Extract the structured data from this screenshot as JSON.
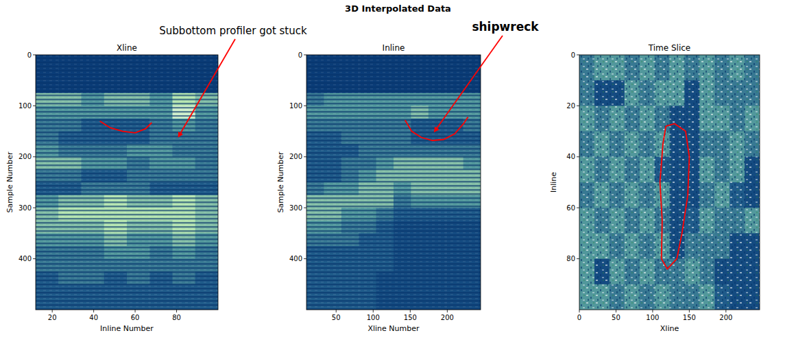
{
  "title": "3D Interpolated Data",
  "annotations": [
    {
      "text": "Subbottom profiler got stuck",
      "panel": 0,
      "x": 81,
      "y": 160,
      "color": "red"
    },
    {
      "text": "shipwreck",
      "panel": 1,
      "x": 183,
      "y": 150,
      "color": "red"
    }
  ],
  "chart_data": [
    {
      "type": "heatmap",
      "title": "Xline",
      "x_label": "Inline Number",
      "y_label": "Sample Number",
      "xlim": [
        12,
        100
      ],
      "ylim": [
        500,
        0
      ],
      "xticks": [
        20,
        40,
        60,
        80
      ],
      "yticks": [
        0,
        100,
        200,
        300,
        400
      ],
      "zlim": [
        0,
        9
      ],
      "outline": {
        "x": [
          43,
          48,
          54,
          60,
          65,
          68
        ],
        "y": [
          130,
          143,
          150,
          153,
          145,
          133
        ],
        "color": "red"
      },
      "cells": [
        [
          1,
          1,
          1,
          1,
          1,
          1,
          1,
          1
        ],
        [
          1,
          1,
          1,
          1,
          1,
          1,
          1,
          1
        ],
        [
          1,
          1,
          1,
          1,
          1,
          1,
          1,
          1
        ],
        [
          6,
          6,
          5,
          6,
          6,
          5,
          7,
          6
        ],
        [
          5,
          5,
          5,
          5,
          5,
          5,
          8,
          5
        ],
        [
          4,
          4,
          3,
          3,
          3,
          4,
          5,
          4
        ],
        [
          4,
          3,
          3,
          3,
          3,
          4,
          4,
          4
        ],
        [
          5,
          4,
          4,
          4,
          5,
          5,
          4,
          4
        ],
        [
          6,
          6,
          5,
          5,
          4,
          5,
          5,
          4
        ],
        [
          4,
          4,
          3,
          3,
          4,
          4,
          4,
          4
        ],
        [
          3,
          3,
          4,
          4,
          4,
          3,
          3,
          3
        ],
        [
          5,
          6,
          6,
          7,
          6,
          6,
          7,
          6
        ],
        [
          6,
          7,
          7,
          7,
          7,
          7,
          7,
          6
        ],
        [
          6,
          6,
          6,
          7,
          6,
          6,
          7,
          6
        ],
        [
          5,
          5,
          5,
          6,
          5,
          5,
          6,
          5
        ],
        [
          4,
          4,
          4,
          5,
          5,
          4,
          5,
          4
        ],
        [
          4,
          4,
          4,
          4,
          4,
          4,
          4,
          4
        ],
        [
          3,
          4,
          4,
          3,
          4,
          3,
          4,
          3
        ],
        [
          3,
          3,
          3,
          3,
          3,
          3,
          3,
          3
        ],
        [
          3,
          3,
          3,
          3,
          3,
          3,
          3,
          3
        ]
      ]
    },
    {
      "type": "heatmap",
      "title": "Inline",
      "x_label": "Xline Number",
      "y_label": "Sample Number",
      "xlim": [
        10,
        245
      ],
      "ylim": [
        500,
        0
      ],
      "xticks": [
        50,
        100,
        150,
        200
      ],
      "yticks": [
        0,
        100,
        200,
        300,
        400
      ],
      "zlim": [
        0,
        9
      ],
      "outline": {
        "x": [
          143,
          152,
          165,
          180,
          195,
          210,
          222,
          228
        ],
        "y": [
          128,
          150,
          162,
          168,
          166,
          155,
          135,
          122
        ],
        "color": "red"
      },
      "cells": [
        [
          1,
          1,
          1,
          1,
          1,
          1,
          1,
          1,
          1,
          1
        ],
        [
          1,
          1,
          1,
          1,
          1,
          1,
          1,
          1,
          1,
          1
        ],
        [
          1,
          1,
          1,
          1,
          1,
          1,
          1,
          1,
          1,
          1
        ],
        [
          4,
          5,
          5,
          5,
          5,
          5,
          5,
          5,
          5,
          5
        ],
        [
          5,
          5,
          5,
          5,
          5,
          5,
          6,
          5,
          5,
          5
        ],
        [
          4,
          4,
          4,
          4,
          4,
          4,
          3,
          3,
          3,
          4
        ],
        [
          3,
          3,
          4,
          4,
          4,
          4,
          3,
          3,
          3,
          3
        ],
        [
          3,
          3,
          3,
          4,
          4,
          4,
          4,
          4,
          4,
          4
        ],
        [
          3,
          3,
          4,
          4,
          5,
          6,
          6,
          6,
          6,
          5
        ],
        [
          3,
          3,
          4,
          5,
          6,
          6,
          6,
          6,
          6,
          6
        ],
        [
          4,
          5,
          5,
          6,
          6,
          5,
          6,
          6,
          6,
          6
        ],
        [
          6,
          6,
          6,
          6,
          6,
          4,
          5,
          5,
          5,
          5
        ],
        [
          6,
          6,
          5,
          5,
          4,
          3,
          3,
          3,
          3,
          3
        ],
        [
          5,
          5,
          4,
          4,
          3,
          2,
          2,
          2,
          2,
          2
        ],
        [
          4,
          4,
          4,
          3,
          3,
          2,
          2,
          2,
          2,
          2
        ],
        [
          3,
          3,
          3,
          3,
          3,
          2,
          2,
          2,
          2,
          2
        ],
        [
          3,
          3,
          3,
          3,
          3,
          2,
          2,
          2,
          2,
          2
        ],
        [
          3,
          3,
          3,
          3,
          2,
          2,
          2,
          2,
          2,
          2
        ],
        [
          3,
          3,
          3,
          3,
          2,
          2,
          2,
          2,
          2,
          2
        ],
        [
          3,
          3,
          3,
          3,
          2,
          2,
          2,
          2,
          2,
          2
        ]
      ]
    },
    {
      "type": "heatmap",
      "title": "Time Slice",
      "x_label": "Xline",
      "y_label": "Inline",
      "xlim": [
        0,
        246
      ],
      "ylim": [
        100,
        0
      ],
      "xticks": [
        0,
        50,
        100,
        150,
        200
      ],
      "yticks": [
        0,
        20,
        40,
        60,
        80
      ],
      "zlim": [
        0,
        9
      ],
      "outline": {
        "x": [
          118,
          130,
          145,
          150,
          148,
          140,
          133,
          120,
          112,
          113,
          110,
          114,
          118
        ],
        "y": [
          28,
          27,
          30,
          40,
          55,
          70,
          80,
          84,
          80,
          65,
          50,
          35,
          28
        ],
        "color": "red"
      },
      "cells": [
        [
          4,
          5,
          5,
          4,
          5,
          4,
          5,
          4,
          5,
          4,
          5,
          4
        ],
        [
          4,
          2,
          2,
          5,
          4,
          5,
          5,
          2,
          5,
          4,
          4,
          4
        ],
        [
          5,
          4,
          5,
          4,
          5,
          4,
          2,
          2,
          5,
          5,
          4,
          5
        ],
        [
          4,
          5,
          4,
          5,
          4,
          5,
          2,
          2,
          4,
          4,
          5,
          4
        ],
        [
          5,
          4,
          5,
          4,
          5,
          3,
          2,
          2,
          5,
          4,
          5,
          2
        ],
        [
          4,
          5,
          4,
          5,
          4,
          5,
          2,
          2,
          4,
          5,
          3,
          2
        ],
        [
          5,
          4,
          5,
          4,
          5,
          4,
          2,
          3,
          5,
          4,
          4,
          5
        ],
        [
          5,
          5,
          4,
          5,
          4,
          5,
          2,
          4,
          4,
          4,
          2,
          2
        ],
        [
          5,
          2,
          5,
          4,
          5,
          4,
          4,
          5,
          4,
          2,
          2,
          2
        ],
        [
          5,
          5,
          4,
          5,
          4,
          5,
          4,
          4,
          5,
          3,
          2,
          2
        ]
      ]
    }
  ]
}
